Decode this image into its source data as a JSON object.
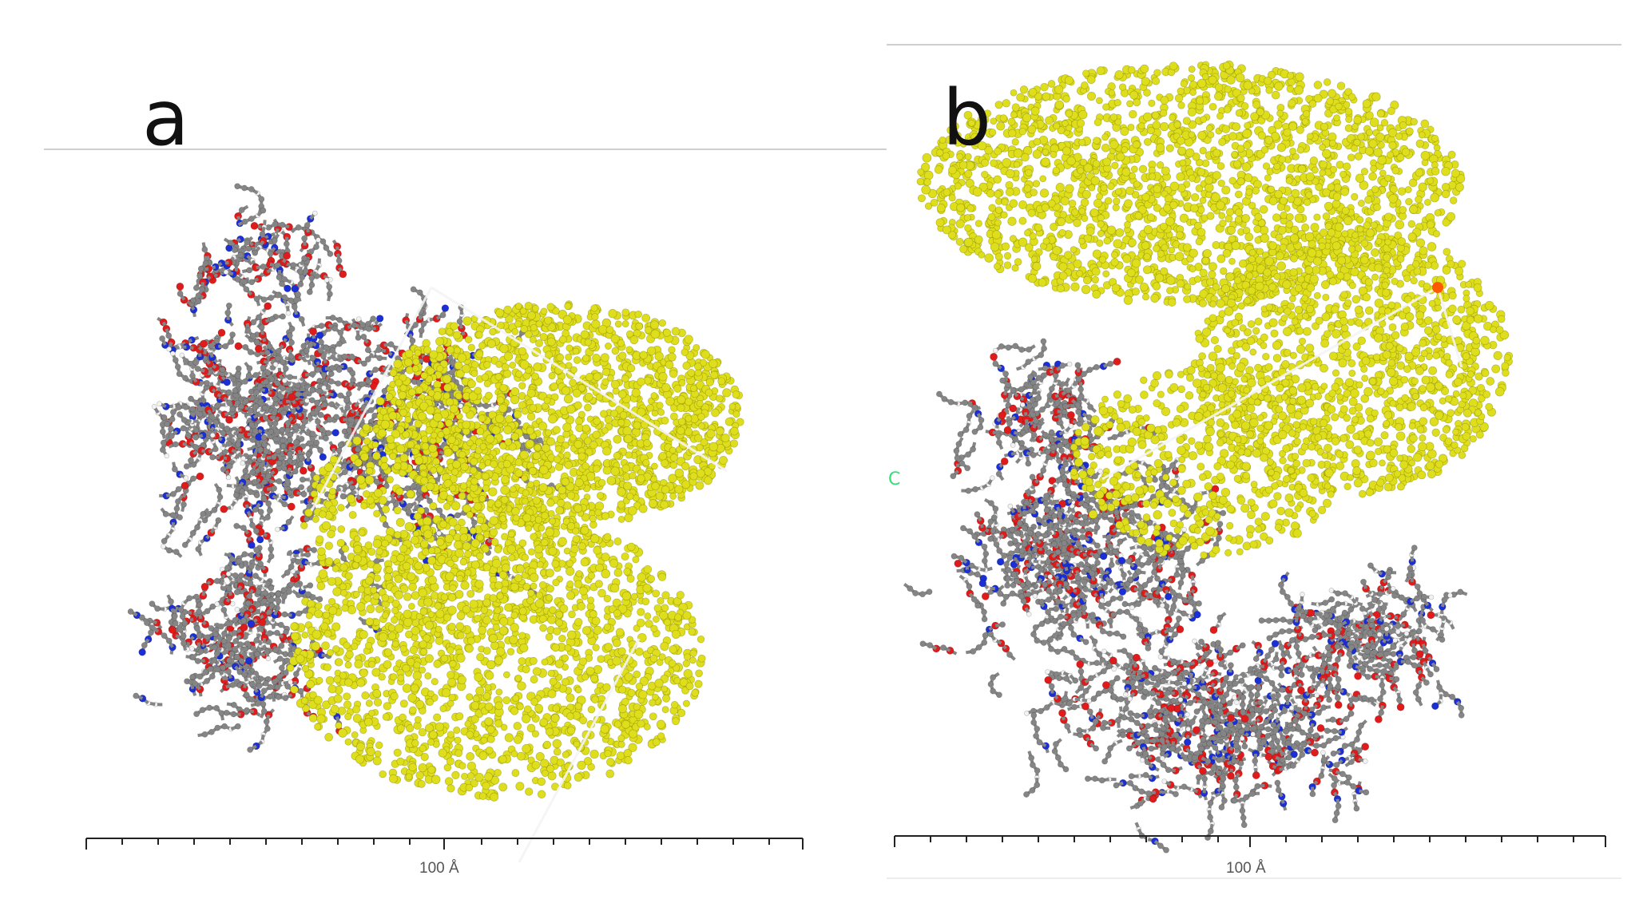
{
  "panels": [
    {
      "label": "a",
      "scale_label": "100 Å",
      "colors": {
        "lipid": "#dede1c",
        "carbon": "#858585",
        "oxygen": "#e01b1b",
        "nitrogen": "#1b2fd6",
        "hydrogen": "#f2f2f2"
      }
    },
    {
      "label": "b",
      "scale_label": "100 Å",
      "side_mark": "C",
      "colors": {
        "lipid": "#dede1c",
        "carbon": "#858585",
        "oxygen": "#e01b1b",
        "nitrogen": "#1b2fd6",
        "hydrogen": "#f2f2f2"
      }
    }
  ]
}
